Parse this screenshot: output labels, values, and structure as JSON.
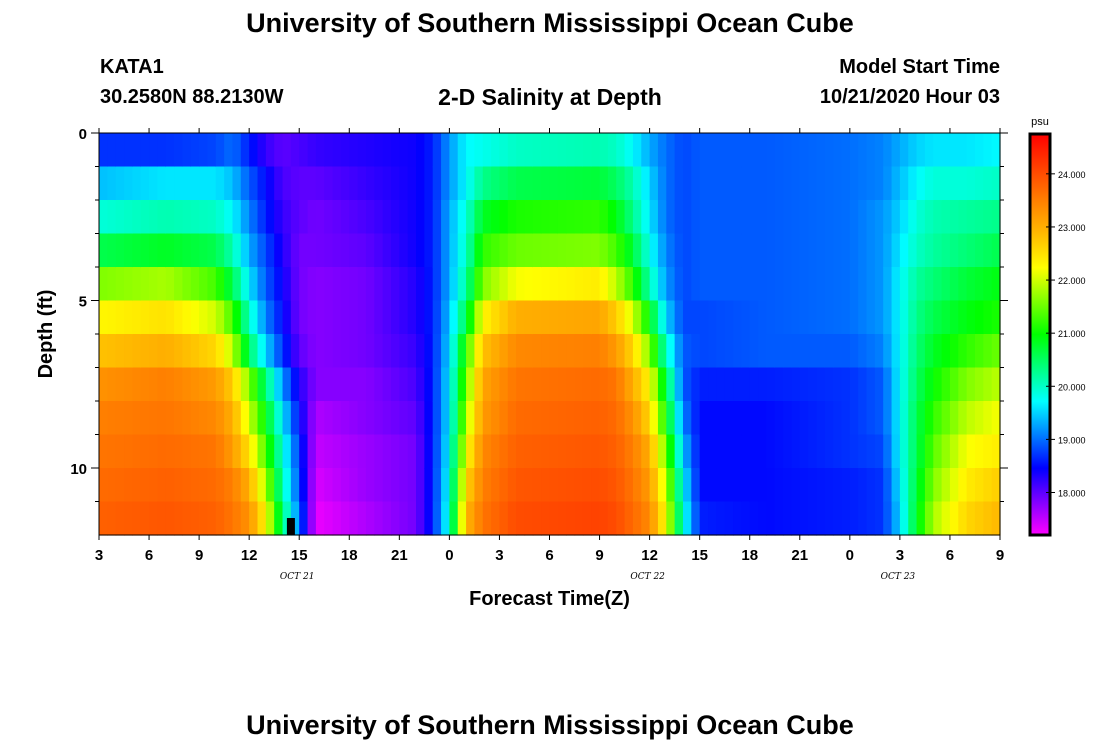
{
  "header": {
    "title": "University of Southern Mississippi Ocean Cube",
    "station": "KATA1",
    "coords": "30.2580N 88.2130W",
    "chart_title": "2-D Salinity at Depth",
    "model_start_label": "Model Start Time",
    "model_start_value": "10/21/2020 Hour 03"
  },
  "footer": {
    "title": "University of Southern Mississippi Ocean Cube"
  },
  "chart_data": {
    "type": "heatmap",
    "title": "2-D Salinity at Depth",
    "xlabel": "Forecast Time(Z)",
    "ylabel": "Depth (ft)",
    "x_ticks": [
      "3",
      "6",
      "9",
      "12",
      "15",
      "18",
      "21",
      "0",
      "3",
      "6",
      "9",
      "12",
      "15",
      "18",
      "21",
      "0",
      "3",
      "6",
      "9"
    ],
    "date_labels": [
      {
        "text": "OCT  21",
        "at_tick": 4
      },
      {
        "text": "OCT  22",
        "at_tick": 11
      },
      {
        "text": "OCT  23",
        "at_tick": 16
      }
    ],
    "y_ticks": [
      0,
      5,
      10
    ],
    "ylim": [
      0,
      12
    ],
    "forecast_hours": 54,
    "depth_levels": 12,
    "colorbar": {
      "unit": "psu",
      "range": [
        17.2,
        24.75
      ],
      "ticks": [
        "24.000",
        "23.000",
        "22.000",
        "21.000",
        "20.000",
        "19.000",
        "18.000"
      ],
      "colors": [
        "#ff00ff",
        "#8000ff",
        "#0000ff",
        "#0080ff",
        "#00ffff",
        "#00ff80",
        "#00ff00",
        "#80ff00",
        "#ffff00",
        "#ffbb00",
        "#ff8000",
        "#ff4000",
        "#ff0000"
      ]
    },
    "salinity_profiles": {
      "description": "salinity (psu) at depth levels 0..11 ft for key forecast hours, linearly interpolated between",
      "keyframes": [
        {
          "hour": 0,
          "values": [
            18.7,
            19.4,
            19.9,
            20.6,
            21.6,
            22.3,
            22.8,
            23.3,
            23.5,
            23.6,
            23.7,
            23.8
          ]
        },
        {
          "hour": 4,
          "values": [
            18.7,
            19.6,
            20.1,
            20.8,
            21.8,
            22.5,
            23.0,
            23.5,
            23.6,
            23.7,
            23.8,
            23.9
          ]
        },
        {
          "hour": 7,
          "values": [
            18.8,
            19.6,
            20.0,
            20.6,
            21.3,
            22.0,
            22.6,
            23.2,
            23.4,
            23.6,
            23.7,
            23.8
          ]
        },
        {
          "hour": 8,
          "values": [
            19.0,
            19.4,
            19.7,
            20.1,
            20.6,
            21.3,
            21.9,
            22.7,
            23.0,
            23.2,
            23.5,
            23.6
          ]
        },
        {
          "hour": 9,
          "values": [
            18.6,
            18.9,
            19.1,
            19.3,
            19.6,
            20.0,
            20.5,
            21.6,
            22.0,
            22.5,
            23.0,
            23.3
          ]
        },
        {
          "hour": 10,
          "values": [
            18.2,
            18.5,
            18.6,
            18.8,
            18.9,
            19.1,
            19.5,
            20.4,
            20.9,
            21.3,
            21.8,
            22.3
          ]
        },
        {
          "hour": 11,
          "values": [
            18.0,
            18.1,
            18.2,
            18.3,
            18.4,
            18.5,
            18.7,
            19.2,
            19.6,
            19.9,
            20.1,
            20.4
          ]
        },
        {
          "hour": 12,
          "values": [
            18.1,
            18.0,
            18.0,
            17.9,
            17.9,
            17.9,
            18.0,
            18.3,
            18.5,
            18.7,
            18.8,
            19.0
          ]
        },
        {
          "hour": 13,
          "values": [
            18.2,
            18.0,
            17.9,
            17.9,
            17.8,
            17.8,
            17.8,
            17.8,
            17.6,
            17.5,
            17.4,
            17.3
          ]
        },
        {
          "hour": 16,
          "values": [
            18.3,
            18.2,
            18.1,
            18.0,
            17.9,
            17.9,
            17.9,
            17.8,
            17.8,
            17.7,
            17.7,
            17.6
          ]
        },
        {
          "hour": 19,
          "values": [
            18.4,
            18.4,
            18.4,
            18.4,
            18.3,
            18.3,
            18.2,
            18.1,
            18.0,
            17.9,
            17.9,
            17.9
          ]
        },
        {
          "hour": 20,
          "values": [
            18.6,
            18.6,
            18.6,
            18.6,
            18.6,
            18.6,
            18.6,
            18.6,
            18.6,
            18.6,
            18.6,
            18.6
          ]
        },
        {
          "hour": 21,
          "values": [
            19.2,
            19.2,
            19.3,
            19.3,
            19.3,
            19.4,
            19.5,
            19.6,
            19.6,
            19.7,
            19.8,
            19.9
          ]
        },
        {
          "hour": 22,
          "values": [
            19.7,
            19.7,
            19.9,
            20.0,
            20.2,
            20.6,
            21.2,
            21.5,
            21.8,
            22.2,
            22.6,
            22.9
          ]
        },
        {
          "hour": 23,
          "values": [
            19.8,
            20.3,
            20.8,
            21.2,
            21.6,
            22.3,
            22.8,
            23.1,
            23.2,
            23.4,
            23.5,
            23.6
          ]
        },
        {
          "hour": 25,
          "values": [
            20.0,
            20.6,
            21.1,
            21.5,
            22.2,
            23.0,
            23.4,
            23.6,
            23.7,
            23.8,
            23.9,
            24.0
          ]
        },
        {
          "hour": 30,
          "values": [
            20.1,
            20.7,
            21.2,
            21.6,
            22.4,
            23.1,
            23.5,
            23.7,
            23.8,
            23.9,
            24.0,
            24.1
          ]
        },
        {
          "hour": 31,
          "values": [
            20.0,
            20.5,
            20.9,
            21.3,
            21.9,
            22.7,
            23.2,
            23.6,
            23.7,
            23.8,
            23.9,
            24.0
          ]
        },
        {
          "hour": 32,
          "values": [
            19.7,
            20.1,
            20.3,
            20.7,
            21.2,
            22.0,
            22.6,
            23.0,
            23.3,
            23.5,
            23.6,
            23.7
          ]
        },
        {
          "hour": 33,
          "values": [
            19.3,
            19.5,
            19.6,
            19.8,
            20.1,
            20.9,
            21.6,
            22.3,
            22.6,
            23.0,
            23.2,
            23.4
          ]
        },
        {
          "hour": 34,
          "values": [
            19.0,
            19.0,
            19.0,
            19.1,
            19.2,
            19.5,
            20.0,
            20.6,
            21.0,
            21.5,
            21.9,
            22.2
          ]
        },
        {
          "hour": 35,
          "values": [
            18.8,
            18.8,
            18.8,
            18.8,
            18.8,
            18.8,
            18.9,
            18.9,
            19.1,
            19.4,
            19.7,
            19.9
          ]
        },
        {
          "hour": 36,
          "values": [
            18.9,
            18.9,
            18.9,
            18.9,
            18.9,
            18.8,
            18.8,
            18.6,
            18.5,
            18.5,
            18.5,
            18.6
          ]
        },
        {
          "hour": 40,
          "values": [
            18.9,
            18.9,
            18.9,
            18.9,
            18.9,
            18.9,
            18.9,
            18.6,
            18.5,
            18.5,
            18.5,
            18.5
          ]
        },
        {
          "hour": 45,
          "values": [
            19.0,
            19.0,
            19.0,
            19.0,
            19.0,
            19.0,
            18.9,
            18.7,
            18.7,
            18.7,
            18.6,
            18.6
          ]
        },
        {
          "hour": 47,
          "values": [
            19.1,
            19.1,
            19.2,
            19.2,
            19.2,
            19.2,
            19.1,
            18.9,
            18.9,
            18.8,
            18.7,
            18.7
          ]
        },
        {
          "hour": 48,
          "values": [
            19.3,
            19.4,
            19.5,
            19.6,
            19.7,
            19.7,
            19.7,
            19.7,
            19.7,
            19.7,
            19.6,
            19.5
          ]
        },
        {
          "hour": 49,
          "values": [
            19.5,
            19.7,
            19.9,
            20.0,
            20.2,
            20.3,
            20.4,
            20.5,
            20.6,
            20.6,
            20.7,
            20.8
          ]
        },
        {
          "hour": 50,
          "values": [
            19.6,
            19.9,
            20.1,
            20.2,
            20.4,
            20.6,
            20.8,
            21.0,
            21.2,
            21.4,
            21.6,
            21.8
          ]
        },
        {
          "hour": 52,
          "values": [
            19.6,
            19.9,
            20.2,
            20.4,
            20.7,
            20.9,
            21.2,
            21.6,
            21.9,
            22.2,
            22.4,
            22.6
          ]
        },
        {
          "hour": 54,
          "values": [
            19.7,
            20.0,
            20.3,
            20.6,
            20.9,
            21.1,
            21.5,
            21.9,
            22.2,
            22.4,
            22.7,
            22.9
          ]
        }
      ]
    },
    "current_time_marker": {
      "hour": 11.5
    }
  }
}
